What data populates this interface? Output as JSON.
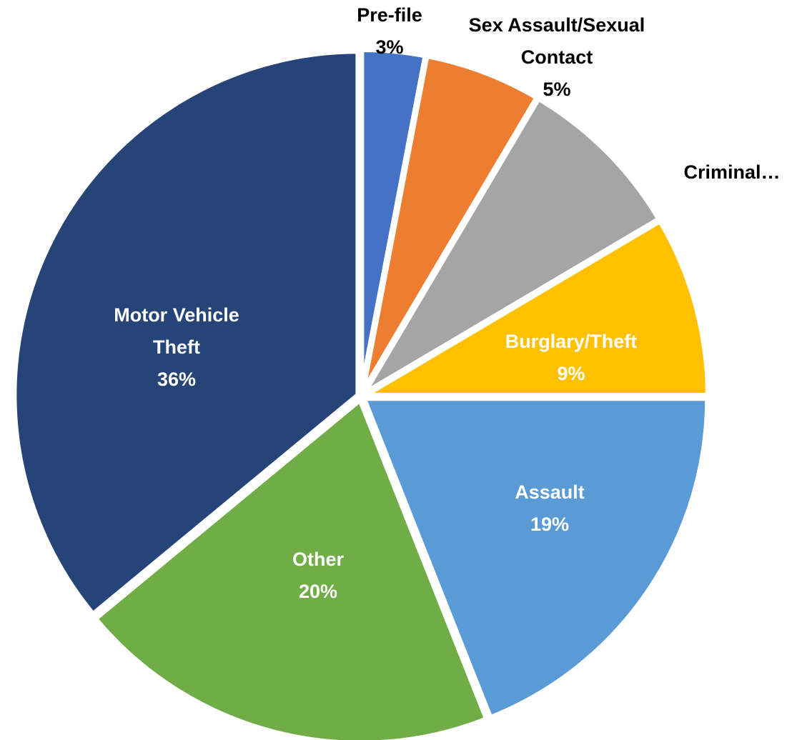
{
  "chart_data": {
    "type": "pie",
    "title": "",
    "start_angle_deg": 0,
    "direction": "clockwise",
    "slices": [
      {
        "label": "Pre-file",
        "percent_label": "3%",
        "value": 3,
        "color": "#4472C4",
        "label_color": "#000000"
      },
      {
        "label": "Sex Assault/Sexual Contact",
        "percent_label": "5%",
        "value": 5.5,
        "color": "#ED7D31",
        "label_color": "#000000"
      },
      {
        "label": "Criminal…",
        "percent_label": "",
        "value": 8,
        "color": "#A5A5A5",
        "label_color": "#000000"
      },
      {
        "label": "Burglary/Theft",
        "percent_label": "9%",
        "value": 8.5,
        "color": "#FFC000",
        "label_color": "#ffffff"
      },
      {
        "label": "Assault",
        "percent_label": "19%",
        "value": 19,
        "color": "#5B9BD5",
        "label_color": "#ffffff"
      },
      {
        "label": "Other",
        "percent_label": "20%",
        "value": 20,
        "color": "#70AD47",
        "label_color": "#ffffff"
      },
      {
        "label": "Motor Vehicle Theft",
        "percent_label": "36%",
        "value": 36,
        "color": "#264478",
        "label_color": "#ffffff"
      }
    ]
  }
}
